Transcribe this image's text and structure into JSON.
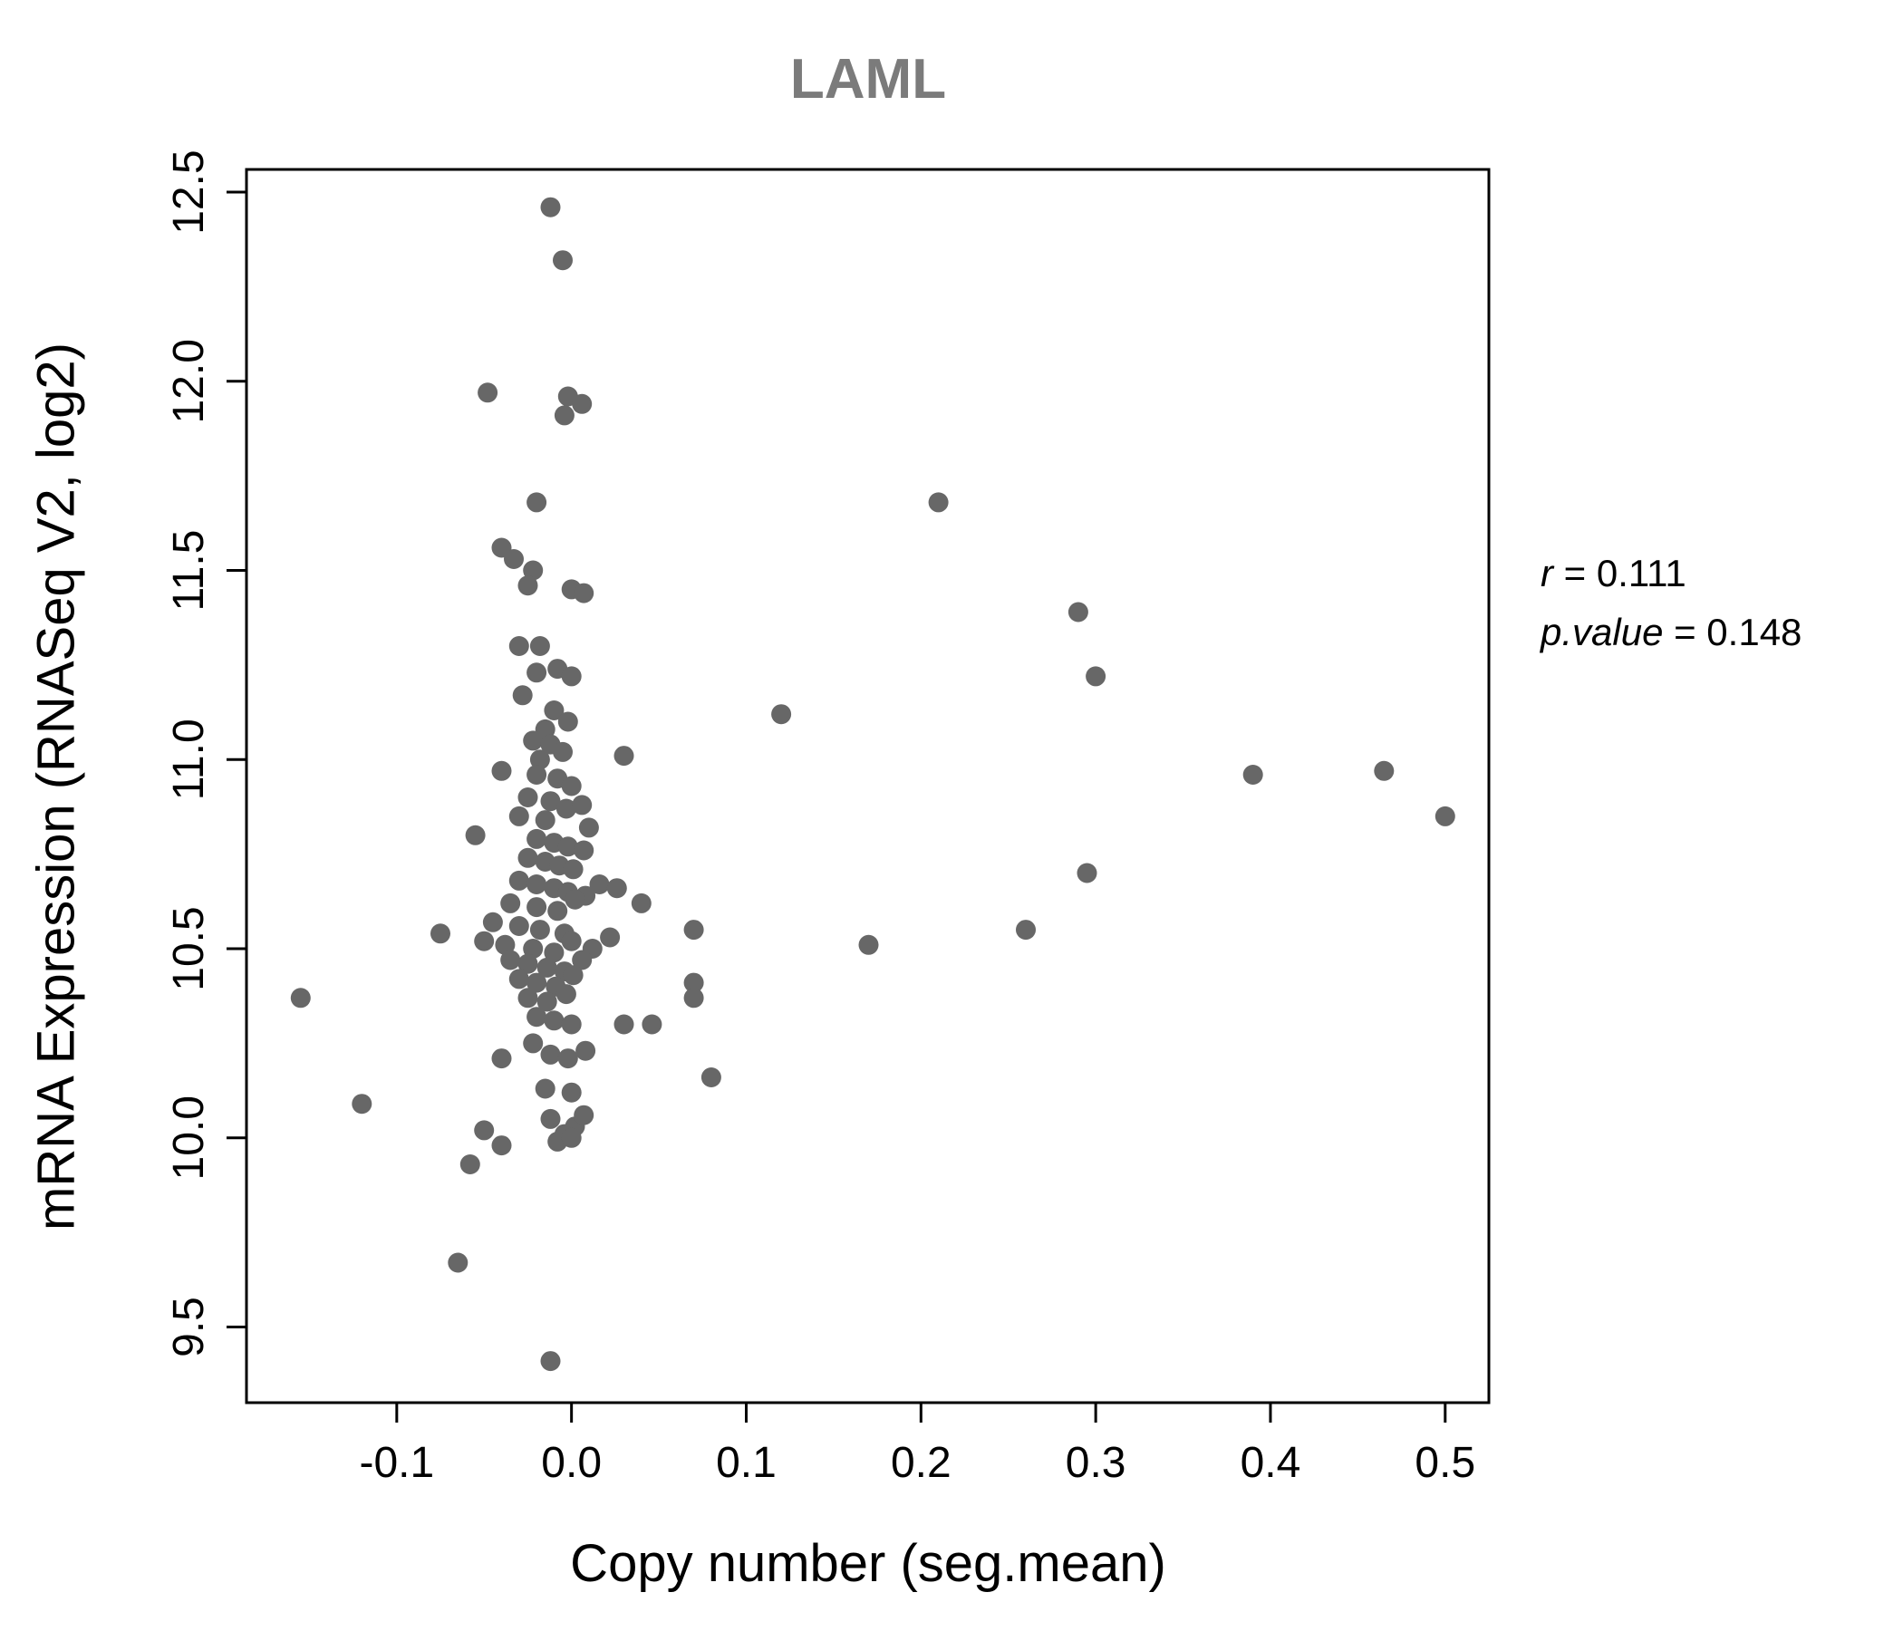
{
  "chart_data": {
    "type": "scatter",
    "title": "LAML",
    "xlabel": "Copy number (seg.mean)",
    "ylabel": "mRNA Expression (RNASeq V2, log2)",
    "xlim": [
      -0.186,
      0.525
    ],
    "ylim": [
      9.3,
      12.56
    ],
    "grid": false,
    "legend": "none",
    "point_color": "#676767",
    "point_radius": 11,
    "xticks": [
      {
        "value": -0.1,
        "label": "-0.1"
      },
      {
        "value": 0.0,
        "label": "0.0"
      },
      {
        "value": 0.1,
        "label": "0.1"
      },
      {
        "value": 0.2,
        "label": "0.2"
      },
      {
        "value": 0.3,
        "label": "0.3"
      },
      {
        "value": 0.4,
        "label": "0.4"
      },
      {
        "value": 0.5,
        "label": "0.5"
      }
    ],
    "yticks": [
      {
        "value": 9.5,
        "label": "9.5"
      },
      {
        "value": 10.0,
        "label": "10.0"
      },
      {
        "value": 10.5,
        "label": "10.5"
      },
      {
        "value": 11.0,
        "label": "11.0"
      },
      {
        "value": 11.5,
        "label": "11.5"
      },
      {
        "value": 12.0,
        "label": "12.0"
      },
      {
        "value": 12.5,
        "label": "12.5"
      }
    ],
    "annotation": {
      "r_label": "r",
      "r_value": " = 0.111",
      "p_label": "p.value",
      "p_value": " = 0.148"
    },
    "points": [
      [
        -0.012,
        12.46
      ],
      [
        -0.005,
        12.32
      ],
      [
        -0.048,
        11.97
      ],
      [
        -0.002,
        11.96
      ],
      [
        0.006,
        11.94
      ],
      [
        -0.004,
        11.91
      ],
      [
        -0.02,
        11.68
      ],
      [
        0.21,
        11.68
      ],
      [
        -0.04,
        11.56
      ],
      [
        -0.033,
        11.53
      ],
      [
        -0.022,
        11.5
      ],
      [
        -0.025,
        11.46
      ],
      [
        0.0,
        11.45
      ],
      [
        0.007,
        11.44
      ],
      [
        0.29,
        11.39
      ],
      [
        -0.03,
        11.3
      ],
      [
        -0.018,
        11.3
      ],
      [
        -0.02,
        11.23
      ],
      [
        -0.008,
        11.24
      ],
      [
        0.0,
        11.22
      ],
      [
        0.3,
        11.22
      ],
      [
        -0.028,
        11.17
      ],
      [
        -0.01,
        11.13
      ],
      [
        0.12,
        11.12
      ],
      [
        -0.002,
        11.1
      ],
      [
        -0.015,
        11.08
      ],
      [
        -0.022,
        11.05
      ],
      [
        -0.012,
        11.04
      ],
      [
        -0.005,
        11.02
      ],
      [
        -0.018,
        11.0
      ],
      [
        0.03,
        11.01
      ],
      [
        -0.04,
        10.97
      ],
      [
        -0.02,
        10.96
      ],
      [
        -0.008,
        10.95
      ],
      [
        0.0,
        10.93
      ],
      [
        0.39,
        10.96
      ],
      [
        0.465,
        10.97
      ],
      [
        -0.025,
        10.9
      ],
      [
        -0.012,
        10.89
      ],
      [
        -0.003,
        10.87
      ],
      [
        0.006,
        10.88
      ],
      [
        -0.03,
        10.85
      ],
      [
        -0.015,
        10.84
      ],
      [
        0.01,
        10.82
      ],
      [
        0.5,
        10.85
      ],
      [
        -0.055,
        10.8
      ],
      [
        -0.02,
        10.79
      ],
      [
        -0.01,
        10.78
      ],
      [
        -0.002,
        10.77
      ],
      [
        0.007,
        10.76
      ],
      [
        -0.025,
        10.74
      ],
      [
        -0.015,
        10.73
      ],
      [
        -0.007,
        10.72
      ],
      [
        0.001,
        10.71
      ],
      [
        0.295,
        10.7
      ],
      [
        -0.03,
        10.68
      ],
      [
        -0.02,
        10.67
      ],
      [
        -0.01,
        10.66
      ],
      [
        -0.002,
        10.65
      ],
      [
        0.008,
        10.64
      ],
      [
        0.016,
        10.67
      ],
      [
        0.026,
        10.66
      ],
      [
        -0.035,
        10.62
      ],
      [
        -0.02,
        10.61
      ],
      [
        -0.008,
        10.6
      ],
      [
        0.002,
        10.63
      ],
      [
        0.04,
        10.62
      ],
      [
        -0.045,
        10.57
      ],
      [
        -0.03,
        10.56
      ],
      [
        -0.018,
        10.55
      ],
      [
        -0.004,
        10.54
      ],
      [
        0.07,
        10.55
      ],
      [
        0.26,
        10.55
      ],
      [
        -0.075,
        10.54
      ],
      [
        -0.05,
        10.52
      ],
      [
        -0.038,
        10.51
      ],
      [
        -0.022,
        10.5
      ],
      [
        -0.01,
        10.49
      ],
      [
        0.0,
        10.52
      ],
      [
        0.012,
        10.5
      ],
      [
        0.022,
        10.53
      ],
      [
        0.17,
        10.51
      ],
      [
        -0.035,
        10.47
      ],
      [
        -0.025,
        10.46
      ],
      [
        -0.014,
        10.45
      ],
      [
        -0.004,
        10.44
      ],
      [
        0.006,
        10.47
      ],
      [
        -0.03,
        10.42
      ],
      [
        -0.02,
        10.41
      ],
      [
        -0.009,
        10.4
      ],
      [
        0.001,
        10.43
      ],
      [
        0.07,
        10.41
      ],
      [
        -0.155,
        10.37
      ],
      [
        -0.025,
        10.37
      ],
      [
        -0.014,
        10.36
      ],
      [
        -0.003,
        10.38
      ],
      [
        0.07,
        10.37
      ],
      [
        -0.02,
        10.32
      ],
      [
        -0.01,
        10.31
      ],
      [
        0.0,
        10.3
      ],
      [
        0.03,
        10.3
      ],
      [
        0.046,
        10.3
      ],
      [
        -0.022,
        10.25
      ],
      [
        -0.04,
        10.21
      ],
      [
        -0.012,
        10.22
      ],
      [
        -0.002,
        10.21
      ],
      [
        0.008,
        10.23
      ],
      [
        -0.015,
        10.13
      ],
      [
        0.0,
        10.12
      ],
      [
        0.08,
        10.16
      ],
      [
        -0.12,
        10.09
      ],
      [
        -0.05,
        10.02
      ],
      [
        -0.012,
        10.05
      ],
      [
        -0.004,
        10.01
      ],
      [
        0.002,
        10.03
      ],
      [
        0.007,
        10.06
      ],
      [
        -0.04,
        9.98
      ],
      [
        -0.008,
        9.99
      ],
      [
        0.0,
        10.0
      ],
      [
        -0.058,
        9.93
      ],
      [
        -0.065,
        9.67
      ],
      [
        -0.012,
        9.41
      ]
    ]
  }
}
